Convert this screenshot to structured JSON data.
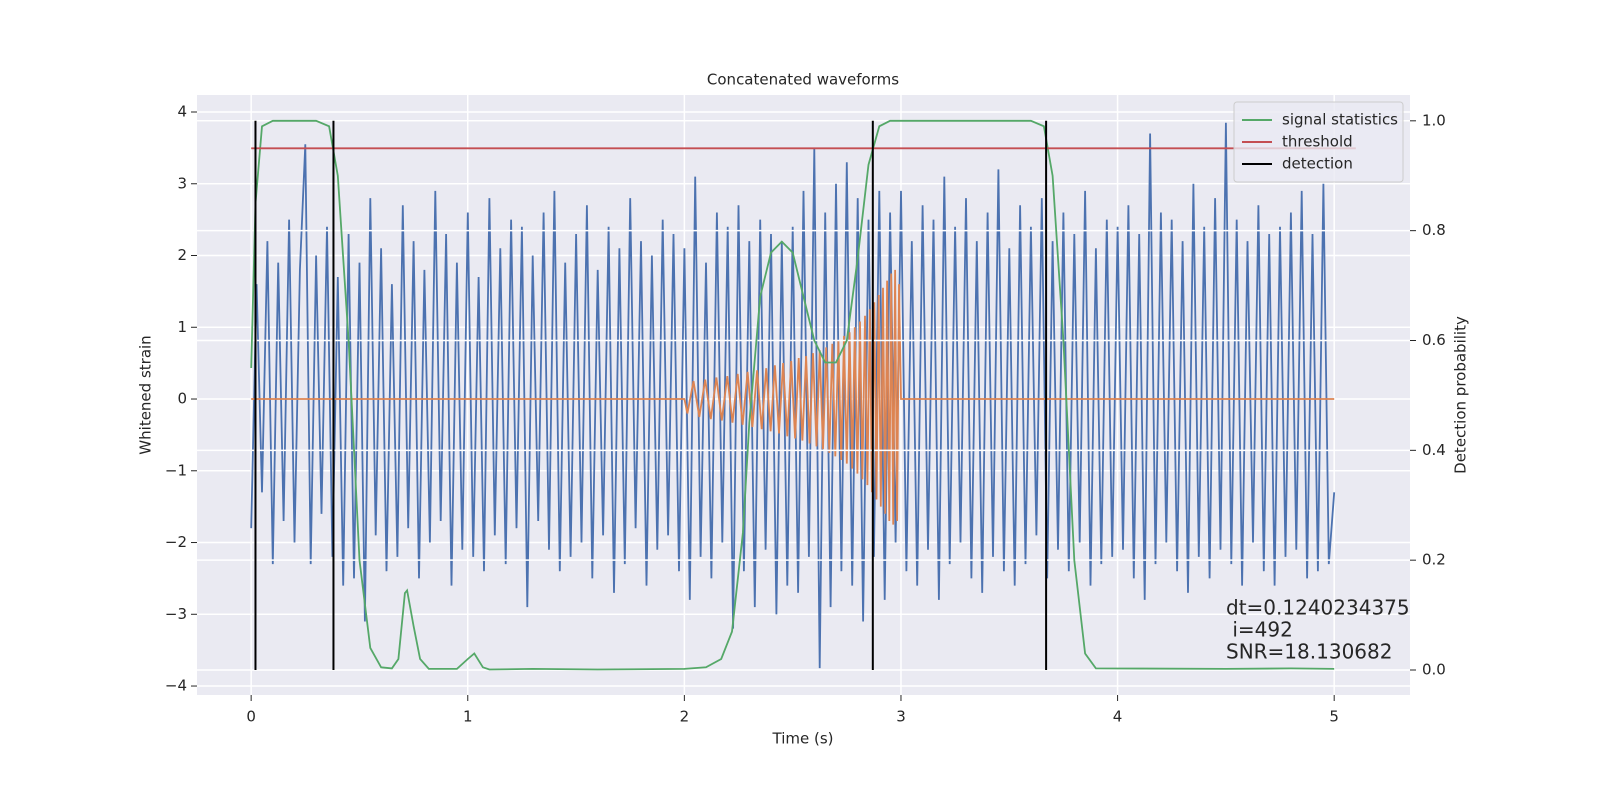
{
  "chart_data": {
    "type": "line",
    "title": "Concatenated waveforms",
    "xlabel": "Time (s)",
    "ylabel": "Whitened strain",
    "y2label": "Detection probability",
    "xlim": [
      -0.25,
      5.35
    ],
    "ylim": [
      -4.125,
      4.237
    ],
    "y2lim": [
      -0.0455,
      1.047
    ],
    "xticks": [
      0,
      1,
      2,
      3,
      4,
      5
    ],
    "yticks": [
      {
        "value": -4,
        "label": "−4"
      },
      {
        "value": -3,
        "label": "−3"
      },
      {
        "value": -2,
        "label": "−2"
      },
      {
        "value": -1,
        "label": "−1"
      },
      0,
      1,
      2,
      3,
      4
    ],
    "y2ticks": [
      {
        "value": 0,
        "label": "0.0"
      },
      0.2,
      0.4,
      0.6,
      0.8,
      {
        "value": 1,
        "label": "1.0"
      }
    ],
    "grid": true,
    "legend": "upper right",
    "series": [
      {
        "color": "#4c72b0",
        "axis": "y",
        "x": [
          0,
          0.025,
          0.05,
          0.075,
          0.1,
          0.125,
          0.15,
          0.175,
          0.2,
          0.225,
          0.25,
          0.275,
          0.3,
          0.325,
          0.35,
          0.375,
          0.4,
          0.425,
          0.45,
          0.475,
          0.5,
          0.525,
          0.55,
          0.575,
          0.6,
          0.625,
          0.65,
          0.675,
          0.7,
          0.725,
          0.75,
          0.775,
          0.8,
          0.825,
          0.85,
          0.875,
          0.9,
          0.925,
          0.95,
          0.975,
          1,
          1.025,
          1.05,
          1.075,
          1.1,
          1.125,
          1.15,
          1.175,
          1.2,
          1.225,
          1.25,
          1.275,
          1.3,
          1.325,
          1.35,
          1.375,
          1.4,
          1.425,
          1.45,
          1.475,
          1.5,
          1.525,
          1.55,
          1.575,
          1.6,
          1.625,
          1.65,
          1.675,
          1.7,
          1.725,
          1.75,
          1.775,
          1.8,
          1.825,
          1.85,
          1.875,
          1.9,
          1.925,
          1.95,
          1.975,
          2,
          2.025,
          2.05,
          2.075,
          2.1,
          2.125,
          2.15,
          2.175,
          2.2,
          2.225,
          2.25,
          2.275,
          2.3,
          2.325,
          2.35,
          2.375,
          2.4,
          2.425,
          2.45,
          2.475,
          2.5,
          2.525,
          2.55,
          2.575,
          2.6,
          2.625,
          2.65,
          2.675,
          2.7,
          2.725,
          2.75,
          2.775,
          2.8,
          2.825,
          2.85,
          2.875,
          2.9,
          2.925,
          2.95,
          2.975,
          3,
          3.025,
          3.05,
          3.075,
          3.1,
          3.125,
          3.15,
          3.175,
          3.2,
          3.225,
          3.25,
          3.275,
          3.3,
          3.325,
          3.35,
          3.375,
          3.4,
          3.425,
          3.45,
          3.475,
          3.5,
          3.525,
          3.55,
          3.575,
          3.6,
          3.625,
          3.65,
          3.675,
          3.7,
          3.725,
          3.75,
          3.775,
          3.8,
          3.825,
          3.85,
          3.875,
          3.9,
          3.925,
          3.95,
          3.975,
          4,
          4.025,
          4.05,
          4.075,
          4.1,
          4.125,
          4.15,
          4.175,
          4.2,
          4.225,
          4.25,
          4.275,
          4.3,
          4.325,
          4.35,
          4.375,
          4.4,
          4.425,
          4.45,
          4.475,
          4.5,
          4.525,
          4.55,
          4.575,
          4.6,
          4.625,
          4.65,
          4.675,
          4.7,
          4.725,
          4.75,
          4.775,
          4.8,
          4.825,
          4.85,
          4.875,
          4.9,
          4.925,
          4.95,
          4.975,
          5
        ],
        "values": [
          -1.8,
          1.6,
          -1.3,
          2.2,
          -2.3,
          1.9,
          -1.7,
          2.5,
          -2.0,
          1.8,
          3.55,
          -2.3,
          2.0,
          -1.6,
          2.4,
          -2.2,
          1.7,
          -2.6,
          2.3,
          -2.5,
          1.9,
          -3.1,
          2.8,
          -1.9,
          2.1,
          -2.4,
          1.6,
          -2.2,
          2.7,
          -1.8,
          2.2,
          -2.5,
          1.8,
          -2.0,
          2.9,
          -1.7,
          2.3,
          -2.6,
          1.9,
          -2.1,
          2.6,
          -2.2,
          1.7,
          -2.4,
          2.8,
          -1.9,
          2.1,
          -2.3,
          2.5,
          -1.8,
          2.4,
          -2.9,
          2.0,
          -1.7,
          2.6,
          -2.1,
          2.9,
          -2.4,
          1.9,
          -2.2,
          2.3,
          -2.0,
          2.7,
          -2.5,
          1.8,
          -1.9,
          2.4,
          -2.7,
          2.1,
          -2.3,
          2.8,
          -1.8,
          2.2,
          -2.6,
          2.0,
          -2.1,
          2.5,
          -1.9,
          2.3,
          -2.4,
          2.1,
          -2.8,
          3.1,
          -2.2,
          1.9,
          -2.5,
          2.6,
          -2.0,
          2.4,
          -3.2,
          2.7,
          -2.4,
          2.2,
          -2.9,
          2.5,
          -2.1,
          2.3,
          -3.0,
          2.2,
          -2.6,
          2.4,
          -2.7,
          2.9,
          -2.2,
          3.5,
          -3.75,
          2.6,
          -2.9,
          3.0,
          -2.4,
          3.3,
          -2.6,
          2.8,
          -3.1,
          2.5,
          -2.2,
          2.9,
          -2.8,
          2.6,
          -2.0,
          2.9,
          -2.4,
          2.2,
          -2.6,
          2.7,
          -2.1,
          2.5,
          -2.8,
          3.1,
          -2.3,
          2.4,
          -2.0,
          2.8,
          -2.5,
          2.2,
          -2.7,
          2.6,
          -2.2,
          3.2,
          -2.4,
          2.1,
          -2.6,
          2.7,
          -2.3,
          2.4,
          -1.9,
          2.8,
          -2.5,
          2.2,
          -2.1,
          2.6,
          -2.4,
          2.3,
          -2.0,
          2.9,
          -2.6,
          2.1,
          -2.3,
          2.5,
          -2.2,
          2.4,
          -2.1,
          2.7,
          -2.5,
          2.3,
          -2.8,
          3.7,
          -2.3,
          2.6,
          -2.0,
          2.5,
          -2.4,
          2.2,
          -2.7,
          3.0,
          -2.2,
          2.4,
          -2.5,
          2.8,
          -2.1,
          3.85,
          -2.3,
          2.5,
          -2.6,
          2.2,
          -2.0,
          2.7,
          -2.4,
          2.3,
          -2.6,
          2.4,
          -2.2,
          2.6,
          -2.1,
          2.9,
          -2.5,
          2.3,
          -2.4,
          3.0,
          -2.3,
          -1.3
        ]
      },
      {
        "color": "#dd8452",
        "axis": "y",
        "x": [
          0,
          2.0,
          2.014,
          2.042,
          2.069,
          2.096,
          2.122,
          2.148,
          2.173,
          2.198,
          2.222,
          2.246,
          2.269,
          2.292,
          2.314,
          2.336,
          2.357,
          2.378,
          2.398,
          2.418,
          2.437,
          2.456,
          2.475,
          2.493,
          2.511,
          2.528,
          2.545,
          2.562,
          2.578,
          2.594,
          2.61,
          2.625,
          2.64,
          2.655,
          2.669,
          2.683,
          2.697,
          2.711,
          2.724,
          2.737,
          2.75,
          2.763,
          2.775,
          2.787,
          2.799,
          2.811,
          2.822,
          2.834,
          2.845,
          2.856,
          2.866,
          2.877,
          2.887,
          2.897,
          2.907,
          2.917,
          2.927,
          2.936,
          2.946,
          2.955,
          2.964,
          2.973,
          2.982,
          2.991,
          3.0,
          5.0
        ],
        "values": [
          0,
          0,
          -0.2,
          0.25,
          -0.25,
          0.27,
          -0.28,
          0.3,
          -0.3,
          0.32,
          -0.33,
          0.35,
          -0.36,
          0.38,
          -0.39,
          0.4,
          -0.42,
          0.43,
          -0.45,
          0.47,
          -0.48,
          0.5,
          -0.52,
          0.53,
          -0.55,
          0.57,
          -0.58,
          0.6,
          -0.62,
          0.64,
          -0.66,
          0.68,
          -0.7,
          0.72,
          -0.75,
          0.77,
          -0.8,
          0.82,
          -0.85,
          0.88,
          -0.9,
          0.93,
          -0.97,
          1.0,
          -1.04,
          1.08,
          -1.12,
          1.16,
          -1.2,
          1.25,
          -1.3,
          1.35,
          -1.4,
          1.45,
          -1.5,
          1.55,
          -1.6,
          1.65,
          -1.7,
          1.75,
          -1.75,
          1.8,
          -1.7,
          1.6,
          0,
          0
        ]
      },
      {
        "name": "signal statistics",
        "color": "#55a868",
        "axis": "y2",
        "x": [
          0,
          0.02,
          0.05,
          0.1,
          0.3,
          0.36,
          0.4,
          0.45,
          0.5,
          0.55,
          0.6,
          0.65,
          0.68,
          0.71,
          0.72,
          0.75,
          0.78,
          0.82,
          0.95,
          1.0,
          1.03,
          1.07,
          1.1,
          1.3,
          1.6,
          2.0,
          2.1,
          2.17,
          2.22,
          2.27,
          2.3,
          2.35,
          2.4,
          2.45,
          2.5,
          2.55,
          2.6,
          2.65,
          2.7,
          2.75,
          2.8,
          2.85,
          2.9,
          2.95,
          3.6,
          3.66,
          3.7,
          3.75,
          3.8,
          3.85,
          3.9,
          4.5,
          4.8,
          5.0
        ],
        "values": [
          0.55,
          0.85,
          0.99,
          1.0,
          1.0,
          0.99,
          0.9,
          0.6,
          0.2,
          0.04,
          0.005,
          0.003,
          0.02,
          0.14,
          0.145,
          0.08,
          0.02,
          0.002,
          0.002,
          0.02,
          0.03,
          0.005,
          0.001,
          0.002,
          0.001,
          0.002,
          0.005,
          0.02,
          0.07,
          0.25,
          0.45,
          0.68,
          0.76,
          0.78,
          0.76,
          0.68,
          0.6,
          0.56,
          0.56,
          0.6,
          0.75,
          0.92,
          0.99,
          1.0,
          1.0,
          0.99,
          0.9,
          0.6,
          0.2,
          0.03,
          0.003,
          0.002,
          0.003,
          0.002
        ]
      },
      {
        "name": "threshold",
        "color": "#c44e52",
        "axis": "y2",
        "x": [
          0,
          5.1
        ],
        "values": [
          0.95,
          0.95
        ]
      },
      {
        "name": "detection",
        "color": "#000000",
        "axis": "y2",
        "type": "vlines",
        "x": [
          0.02,
          0.38,
          2.87,
          3.67
        ],
        "ymin": 0,
        "ymax": 1
      }
    ],
    "annotations": [
      {
        "text": "dt=0.1240234375"
      },
      {
        "text": " i=492"
      },
      {
        "text": "SNR=18.130682"
      }
    ]
  }
}
